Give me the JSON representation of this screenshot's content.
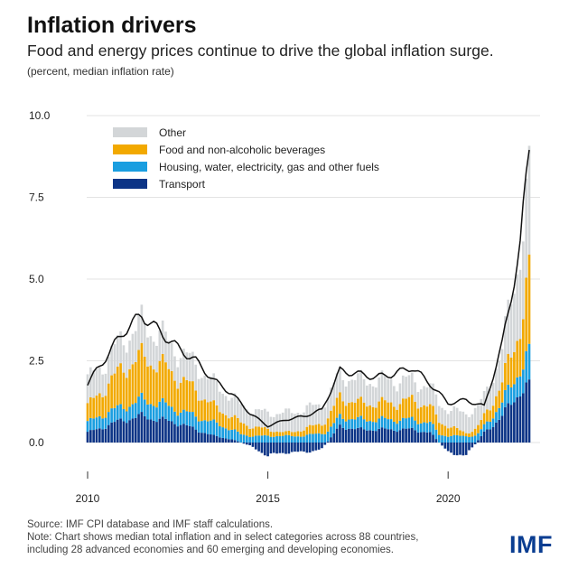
{
  "header": {
    "title": "Inflation drivers",
    "subtitle": "Food and energy prices continue to drive the global inflation surge.",
    "unit": "(percent, median inflation rate)"
  },
  "footer": {
    "source": "Source: IMF CPI database and IMF staff calculations.",
    "note_line1": "Note: Chart shows median total inflation and in select categories across 88 countries,",
    "note_line2": "including 28 advanced economies and 60 emerging and developing economies.",
    "logo": "IMF"
  },
  "chart_data": {
    "type": "bar",
    "stacked": true,
    "x_unit": "year",
    "x": [
      2010.0,
      2010.5,
      2011.0,
      2011.5,
      2012.0,
      2012.5,
      2013.0,
      2013.5,
      2014.0,
      2014.5,
      2015.0,
      2015.5,
      2016.0,
      2016.5,
      2017.0,
      2017.5,
      2018.0,
      2018.5,
      2019.0,
      2019.5,
      2020.0,
      2020.5,
      2021.0,
      2021.5,
      2022.0,
      2022.3
    ],
    "series": [
      {
        "name": "Other",
        "color": "#d3d6d8",
        "values": [
          0.8,
          0.8,
          0.9,
          1.0,
          0.9,
          0.8,
          0.8,
          0.7,
          0.6,
          0.5,
          0.5,
          0.6,
          0.6,
          0.6,
          0.7,
          0.7,
          0.7,
          0.7,
          0.6,
          0.6,
          0.5,
          0.6,
          0.6,
          1.0,
          2.4,
          3.0
        ]
      },
      {
        "name": "Food and non-alcoholic beverages",
        "color": "#f2a900",
        "values": [
          0.5,
          0.8,
          1.2,
          1.3,
          1.2,
          1.0,
          0.8,
          0.5,
          0.4,
          0.3,
          0.2,
          0.1,
          0.2,
          0.3,
          0.6,
          0.5,
          0.5,
          0.5,
          0.6,
          0.5,
          0.3,
          0.1,
          0.3,
          0.6,
          1.3,
          2.6
        ]
      },
      {
        "name": "Housing, water, electricity, gas and other fuels",
        "color": "#1a9ee0",
        "values": [
          0.3,
          0.4,
          0.4,
          0.5,
          0.5,
          0.4,
          0.4,
          0.4,
          0.3,
          0.2,
          0.2,
          0.2,
          0.2,
          0.3,
          0.3,
          0.3,
          0.3,
          0.3,
          0.3,
          0.3,
          0.2,
          0.2,
          0.2,
          0.4,
          0.7,
          1.0
        ]
      },
      {
        "name": "Transport",
        "color": "#0c3486",
        "values": [
          0.3,
          0.5,
          0.7,
          0.8,
          0.7,
          0.6,
          0.4,
          0.2,
          0.1,
          -0.1,
          -0.4,
          -0.3,
          -0.3,
          -0.2,
          0.5,
          0.4,
          0.4,
          0.4,
          0.4,
          0.3,
          -0.3,
          -0.4,
          0.3,
          0.8,
          1.6,
          1.7
        ]
      }
    ],
    "total": {
      "color": "#111111",
      "values": [
        1.8,
        2.6,
        3.4,
        3.9,
        3.4,
        2.9,
        2.5,
        1.9,
        1.5,
        0.9,
        0.5,
        0.7,
        0.8,
        1.0,
        2.2,
        2.1,
        2.0,
        2.1,
        2.3,
        1.8,
        1.2,
        1.3,
        1.1,
        3.0,
        6.0,
        9.7
      ]
    },
    "ylim": [
      -0.8,
      10.0
    ],
    "yticks": [
      "10.0",
      "7.5",
      "5.0",
      "2.5",
      "0.0"
    ],
    "ytick_values": [
      10.0,
      7.5,
      5.0,
      2.5,
      0.0
    ],
    "xticks": [
      "2010",
      "2015",
      "2020"
    ],
    "xtick_values": [
      2010,
      2015,
      2020
    ],
    "xlim": [
      2009.7,
      2023.0
    ],
    "legend_position": "top-left",
    "legend_order": [
      "Other",
      "Food and non-alcoholic beverages",
      "Housing, water, electricity, gas and other fuels",
      "Transport"
    ],
    "grid": true
  }
}
